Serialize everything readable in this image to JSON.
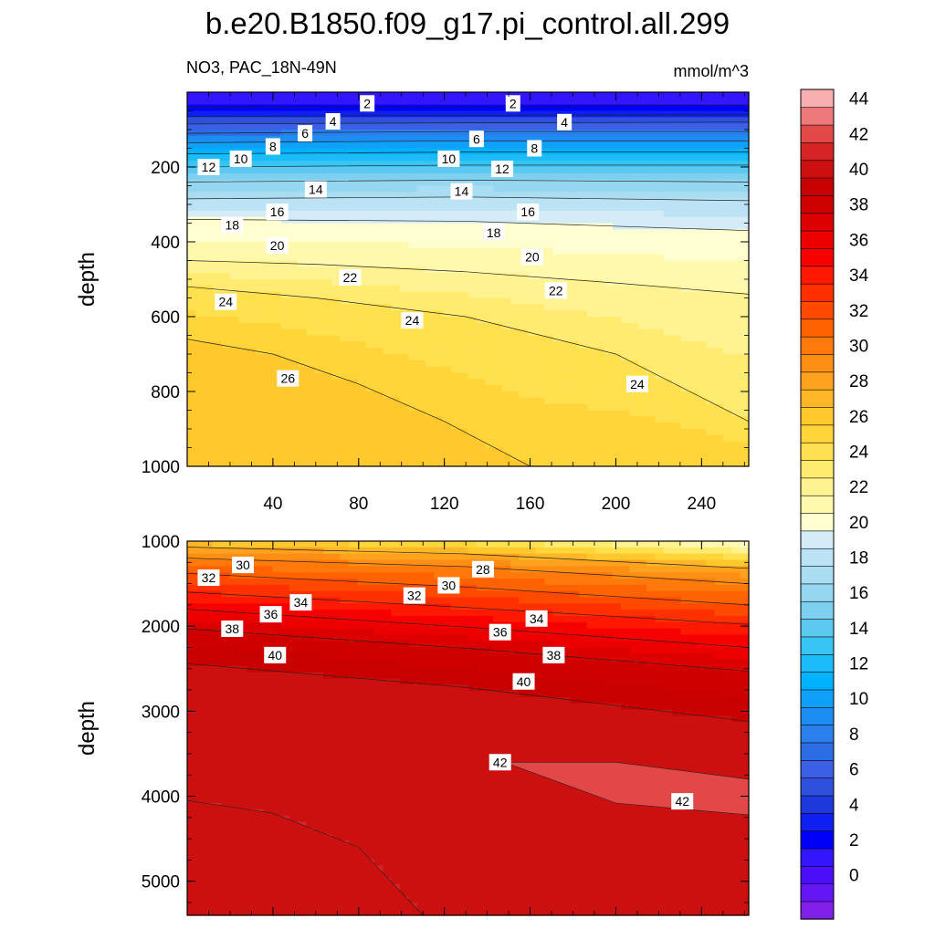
{
  "title": "b.e20.B1850.f09_g17.pi_control.all.299",
  "subtitle_left": "NO3, PAC_18N-49N",
  "subtitle_right": "mmol/m^3",
  "chart_data": [
    {
      "type": "heatmap",
      "panel": "upper",
      "ylabel": "depth",
      "xlim": [
        0,
        262
      ],
      "ylim": [
        1000,
        0
      ],
      "x_ticks": [
        40,
        80,
        120,
        160,
        200,
        240
      ],
      "y_ticks": [
        200,
        400,
        600,
        800,
        1000
      ],
      "contours": [
        {
          "level": 2,
          "points": [
            [
              0,
              40
            ],
            [
              130,
              38
            ],
            [
              262,
              35
            ]
          ]
        },
        {
          "level": 4,
          "points": [
            [
              0,
              65
            ],
            [
              130,
              62
            ],
            [
              262,
              60
            ]
          ]
        },
        {
          "level": 6,
          "points": [
            [
              0,
              85
            ],
            [
              130,
              82
            ],
            [
              262,
              80
            ]
          ]
        },
        {
          "level": 8,
          "points": [
            [
              0,
              110
            ],
            [
              130,
              105
            ],
            [
              262,
              105
            ]
          ]
        },
        {
          "level": 10,
          "points": [
            [
              0,
              135
            ],
            [
              130,
              130
            ],
            [
              262,
              130
            ]
          ]
        },
        {
          "level": 12,
          "points": [
            [
              0,
              165
            ],
            [
              130,
              160
            ],
            [
              262,
              160
            ]
          ]
        },
        {
          "level": 14,
          "points": [
            [
              0,
              200
            ],
            [
              130,
              195
            ],
            [
              262,
              195
            ]
          ]
        },
        {
          "level": 16,
          "points": [
            [
              0,
              240
            ],
            [
              130,
              235
            ],
            [
              262,
              240
            ]
          ]
        },
        {
          "level": 18,
          "points": [
            [
              0,
              285
            ],
            [
              130,
              280
            ],
            [
              262,
              290
            ]
          ]
        },
        {
          "level": 20,
          "points": [
            [
              0,
              340
            ],
            [
              130,
              345
            ],
            [
              262,
              370
            ]
          ]
        },
        {
          "level": 22,
          "points": [
            [
              0,
              450
            ],
            [
              60,
              460
            ],
            [
              130,
              480
            ],
            [
              200,
              510
            ],
            [
              262,
              540
            ]
          ]
        },
        {
          "level": 24,
          "points": [
            [
              0,
              520
            ],
            [
              60,
              550
            ],
            [
              130,
              600
            ],
            [
              200,
              700
            ],
            [
              262,
              880
            ]
          ]
        },
        {
          "level": 26,
          "points": [
            [
              0,
              660
            ],
            [
              40,
              700
            ],
            [
              80,
              780
            ],
            [
              120,
              880
            ],
            [
              160,
              1000
            ]
          ]
        }
      ],
      "labels": [
        {
          "x": 84,
          "y": 30,
          "text": "2"
        },
        {
          "x": 152,
          "y": 30,
          "text": "2"
        },
        {
          "x": 68,
          "y": 78,
          "text": "4"
        },
        {
          "x": 176,
          "y": 80,
          "text": "4"
        },
        {
          "x": 55,
          "y": 110,
          "text": "6"
        },
        {
          "x": 135,
          "y": 125,
          "text": "6"
        },
        {
          "x": 40,
          "y": 145,
          "text": "8"
        },
        {
          "x": 162,
          "y": 150,
          "text": "8"
        },
        {
          "x": 25,
          "y": 178,
          "text": "10"
        },
        {
          "x": 122,
          "y": 178,
          "text": "10"
        },
        {
          "x": 10,
          "y": 200,
          "text": "12"
        },
        {
          "x": 147,
          "y": 205,
          "text": "12"
        },
        {
          "x": 60,
          "y": 260,
          "text": "14"
        },
        {
          "x": 128,
          "y": 265,
          "text": "14"
        },
        {
          "x": 42,
          "y": 320,
          "text": "16"
        },
        {
          "x": 159,
          "y": 320,
          "text": "16"
        },
        {
          "x": 21,
          "y": 355,
          "text": "18"
        },
        {
          "x": 143,
          "y": 375,
          "text": "18"
        },
        {
          "x": 42,
          "y": 410,
          "text": "20"
        },
        {
          "x": 161,
          "y": 440,
          "text": "20"
        },
        {
          "x": 76,
          "y": 495,
          "text": "22"
        },
        {
          "x": 172,
          "y": 530,
          "text": "22"
        },
        {
          "x": 18,
          "y": 560,
          "text": "24"
        },
        {
          "x": 105,
          "y": 610,
          "text": "24"
        },
        {
          "x": 210,
          "y": 780,
          "text": "24"
        },
        {
          "x": 47,
          "y": 765,
          "text": "26"
        }
      ]
    },
    {
      "type": "heatmap",
      "panel": "lower",
      "ylabel": "depth",
      "xlim": [
        0,
        262
      ],
      "ylim": [
        5400,
        1000
      ],
      "y_ticks": [
        1000,
        2000,
        3000,
        4000,
        5000
      ],
      "contours": [
        {
          "level": 28,
          "points": [
            [
              0,
              1070
            ],
            [
              130,
              1150
            ],
            [
              262,
              1320
            ]
          ]
        },
        {
          "level": 30,
          "points": [
            [
              0,
              1200
            ],
            [
              130,
              1300
            ],
            [
              262,
              1500
            ]
          ]
        },
        {
          "level": 32,
          "points": [
            [
              0,
              1380
            ],
            [
              130,
              1540
            ],
            [
              262,
              1750
            ]
          ]
        },
        {
          "level": 34,
          "points": [
            [
              0,
              1600
            ],
            [
              130,
              1780
            ],
            [
              262,
              1980
            ]
          ]
        },
        {
          "level": 36,
          "points": [
            [
              0,
              1800
            ],
            [
              130,
              2010
            ],
            [
              262,
              2250
            ]
          ]
        },
        {
          "level": 38,
          "points": [
            [
              0,
              2030
            ],
            [
              130,
              2260
            ],
            [
              262,
              2530
            ]
          ]
        },
        {
          "level": 40,
          "points": [
            [
              0,
              2440
            ],
            [
              130,
              2720
            ],
            [
              262,
              3120
            ]
          ]
        },
        {
          "level": 42,
          "points": [
            [
              148,
              3600
            ],
            [
              200,
              3600
            ],
            [
              262,
              3800
            ],
            [
              262,
              4220
            ],
            [
              200,
              4080
            ],
            [
              148,
              3600
            ]
          ]
        },
        {
          "level": 41,
          "points": [
            [
              0,
              4050
            ],
            [
              40,
              4200
            ],
            [
              80,
              4600
            ],
            [
              110,
              5400
            ]
          ]
        }
      ],
      "labels": [
        {
          "x": 10,
          "y": 1430,
          "text": "32"
        },
        {
          "x": 26,
          "y": 1280,
          "text": "30"
        },
        {
          "x": 39,
          "y": 1860,
          "text": "36"
        },
        {
          "x": 53,
          "y": 1720,
          "text": "34"
        },
        {
          "x": 21,
          "y": 2030,
          "text": "38"
        },
        {
          "x": 41,
          "y": 2340,
          "text": "40"
        },
        {
          "x": 106,
          "y": 1640,
          "text": "32"
        },
        {
          "x": 122,
          "y": 1520,
          "text": "30"
        },
        {
          "x": 138,
          "y": 1330,
          "text": "28"
        },
        {
          "x": 146,
          "y": 2070,
          "text": "36"
        },
        {
          "x": 163,
          "y": 1910,
          "text": "34"
        },
        {
          "x": 171,
          "y": 2340,
          "text": "38"
        },
        {
          "x": 157,
          "y": 2650,
          "text": "40"
        },
        {
          "x": 146,
          "y": 3600,
          "text": "42"
        },
        {
          "x": 231,
          "y": 4060,
          "text": "42"
        }
      ]
    },
    {
      "type": "colorbar",
      "unit": "mmol/m^3",
      "levels": [
        0,
        2,
        4,
        6,
        8,
        10,
        12,
        14,
        16,
        18,
        20,
        22,
        24,
        26,
        28,
        30,
        32,
        34,
        36,
        38,
        40,
        42,
        44
      ],
      "tick_labels": [
        "0",
        "2",
        "4",
        "6",
        "8",
        "10",
        "12",
        "14",
        "16",
        "18",
        "20",
        "22",
        "24",
        "26",
        "28",
        "30",
        "32",
        "34",
        "36",
        "38",
        "40",
        "42",
        "44"
      ],
      "colors": [
        "#8120EB",
        "#6416F5",
        "#4B0EFA",
        "#3315FE",
        "#0000FA",
        "#0E1FEF",
        "#1D39DC",
        "#2F4FDD",
        "#3B60E6",
        "#2A6DE4",
        "#2B7FEC",
        "#1C8EF3",
        "#0FA0F9",
        "#00B2FF",
        "#1BBCF7",
        "#38C5F4",
        "#5BC9F0",
        "#7DD0EF",
        "#95D7F1",
        "#A8DDF2",
        "#BCE3F5",
        "#D4EBF8",
        "#FFFED0",
        "#FFF9AE",
        "#FFF291",
        "#FFEB70",
        "#FFE14F",
        "#FFD53A",
        "#FFC92E",
        "#FFB728",
        "#FFA31E",
        "#FF8E14",
        "#FF7A0A",
        "#FF6200",
        "#FF4A00",
        "#FF3000",
        "#FF1900",
        "#F60000",
        "#EC0000",
        "#DD0000",
        "#CF0000",
        "#C80000",
        "#CC1010",
        "#D62424",
        "#E24848",
        "#ED7A7A",
        "#F7AFAF"
      ]
    }
  ]
}
